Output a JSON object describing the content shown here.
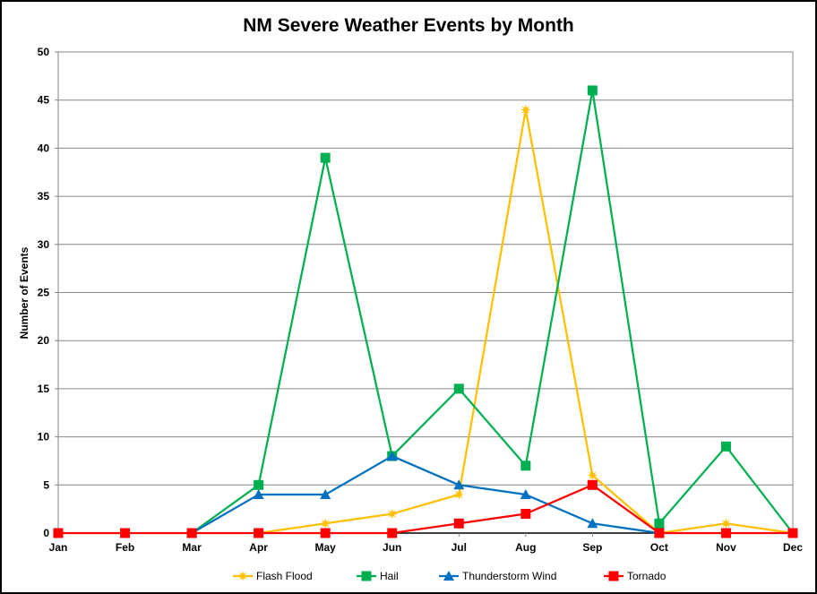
{
  "chart_data": {
    "type": "line",
    "title": "NM Severe Weather Events by Month",
    "xlabel": "",
    "ylabel": "Number of Events",
    "categories": [
      "Jan",
      "Feb",
      "Mar",
      "Apr",
      "May",
      "Jun",
      "Jul",
      "Aug",
      "Sep",
      "Oct",
      "Nov",
      "Dec"
    ],
    "ylim": [
      0,
      50
    ],
    "yticks": [
      0,
      5,
      10,
      15,
      20,
      25,
      30,
      35,
      40,
      45,
      50
    ],
    "grid": true,
    "legend_position": "bottom",
    "series": [
      {
        "name": "Flash Flood",
        "color": "#FFC000",
        "marker": "star",
        "values": [
          null,
          null,
          null,
          0,
          1,
          2,
          4,
          44,
          6,
          0,
          1,
          0
        ]
      },
      {
        "name": "Hail",
        "color": "#00B050",
        "marker": "square",
        "values": [
          null,
          null,
          0,
          5,
          39,
          8,
          15,
          7,
          46,
          1,
          9,
          0
        ]
      },
      {
        "name": "Thunderstorm Wind",
        "color": "#0070C0",
        "marker": "triangle",
        "values": [
          null,
          null,
          0,
          4,
          4,
          8,
          5,
          4,
          1,
          0,
          null,
          null
        ]
      },
      {
        "name": "Tornado",
        "color": "#FF0000",
        "marker": "square",
        "values": [
          0,
          0,
          0,
          0,
          0,
          0,
          1,
          2,
          5,
          0,
          0,
          0
        ]
      }
    ]
  }
}
